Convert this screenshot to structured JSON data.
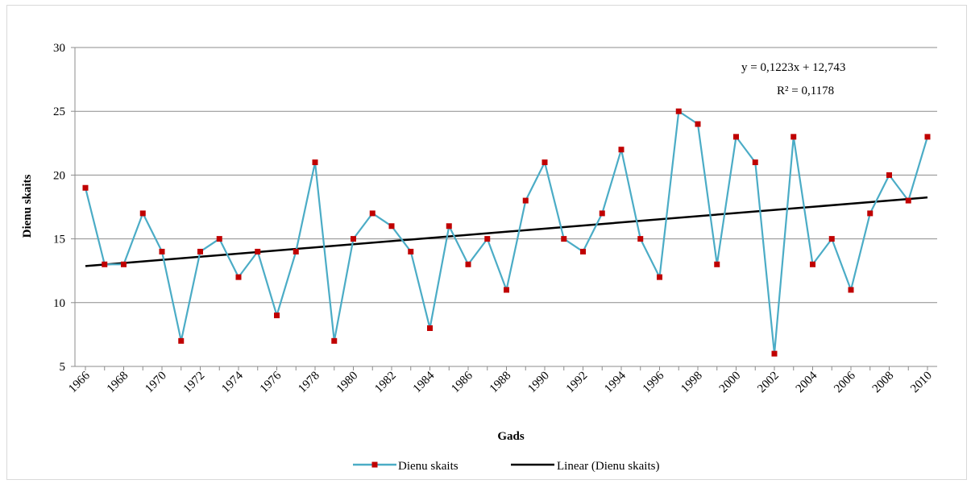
{
  "chart_data": {
    "type": "line",
    "xlabel": "Gads",
    "ylabel": "Dienu skaits",
    "ylim": [
      5,
      30
    ],
    "yticks": [
      "5",
      "10",
      "15",
      "20",
      "25",
      "30"
    ],
    "xlim": [
      1966,
      2010
    ],
    "xticks": [
      "1966",
      "1968",
      "1970",
      "1972",
      "1974",
      "1976",
      "1978",
      "1980",
      "1982",
      "1984",
      "1986",
      "1988",
      "1990",
      "1992",
      "1994",
      "1996",
      "1998",
      "2000",
      "2002",
      "2004",
      "2006",
      "2008",
      "2010"
    ],
    "grid": "horizontal",
    "legend_position": "bottom",
    "series": [
      {
        "name": "Dienu skaits",
        "color": "#4bacc6",
        "marker_color": "#c00000",
        "x": [
          1966,
          1967,
          1968,
          1969,
          1970,
          1971,
          1972,
          1973,
          1974,
          1975,
          1976,
          1977,
          1978,
          1979,
          1980,
          1981,
          1982,
          1983,
          1984,
          1985,
          1986,
          1987,
          1988,
          1989,
          1990,
          1991,
          1992,
          1993,
          1994,
          1995,
          1996,
          1997,
          1998,
          1999,
          2000,
          2001,
          2002,
          2003,
          2004,
          2005,
          2006,
          2007,
          2008,
          2009,
          2010
        ],
        "values": [
          19,
          13,
          13,
          17,
          14,
          7,
          14,
          15,
          12,
          14,
          9,
          14,
          21,
          7,
          15,
          17,
          16,
          14,
          8,
          16,
          13,
          15,
          11,
          18,
          21,
          15,
          14,
          17,
          22,
          15,
          12,
          25,
          24,
          13,
          23,
          21,
          6,
          23,
          13,
          15,
          11,
          17,
          20,
          18,
          23
        ]
      },
      {
        "name": "Linear (Dienu skaits)",
        "color": "#000000",
        "type": "trendline",
        "slope": 0.1223,
        "intercept": 12.743
      }
    ],
    "annotations": [
      "y = 0,1223x   + 12,743",
      "R² = 0,1178"
    ]
  }
}
